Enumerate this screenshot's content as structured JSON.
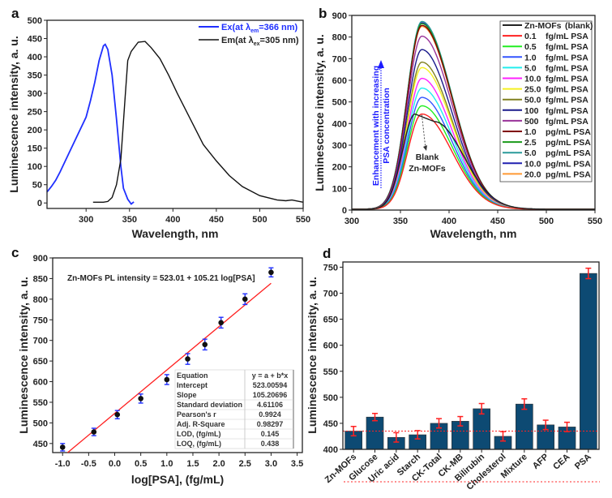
{
  "chart_data": [
    {
      "panel": "a",
      "type": "line",
      "xlabel": "Wavelength, nm",
      "ylabel": "Luminescence intensity, a. u.",
      "xlim": [
        255,
        550
      ],
      "ylim": [
        -15,
        500
      ],
      "xticks": [
        300,
        350,
        400,
        450,
        500,
        550
      ],
      "yticks": [
        0,
        50,
        100,
        150,
        200,
        250,
        300,
        350,
        400,
        450,
        500
      ],
      "grid": false,
      "legend_position": "top-right",
      "series": [
        {
          "name": "Ex(at λem=366 nm)",
          "legend_main": "Ex(at λ",
          "legend_sub": "em",
          "legend_tail": "=366 nm)",
          "color": "#1f2fff",
          "x": [
            255,
            260,
            265,
            270,
            280,
            290,
            300,
            305,
            310,
            315,
            320,
            322,
            325,
            330,
            335,
            340,
            343,
            348,
            352,
            355
          ],
          "y": [
            30,
            45,
            62,
            85,
            135,
            185,
            235,
            280,
            330,
            390,
            430,
            434,
            420,
            350,
            230,
            100,
            40,
            10,
            -3,
            3
          ]
        },
        {
          "name": "Em(at λex=305 nm)",
          "legend_main": "Em(at λ",
          "legend_sub": "ex",
          "legend_tail": "=305 nm)",
          "color": "#111111",
          "x": [
            308,
            320,
            325,
            330,
            335,
            340,
            345,
            348,
            352,
            360,
            368,
            375,
            385,
            395,
            405,
            420,
            435,
            450,
            465,
            480,
            500,
            520,
            530,
            537,
            550
          ],
          "y": [
            2,
            2,
            4,
            15,
            50,
            120,
            290,
            390,
            415,
            440,
            442,
            425,
            395,
            350,
            300,
            230,
            160,
            115,
            75,
            45,
            20,
            8,
            6,
            8,
            2
          ]
        }
      ]
    },
    {
      "panel": "b",
      "type": "line",
      "xlabel": "Wavelength, nm",
      "ylabel": "Luminescence intensity, a. u.",
      "xlim": [
        300,
        550
      ],
      "ylim": [
        0,
        900
      ],
      "xticks": [
        300,
        350,
        400,
        450,
        500,
        550
      ],
      "yticks": [
        0,
        100,
        200,
        300,
        400,
        500,
        600,
        700,
        800,
        900
      ],
      "grid": false,
      "legend_position": "top-right",
      "peak_wavelength": 372,
      "series": [
        {
          "conc": "Zn-MOFs",
          "unit": "(blank)",
          "color": "#222222",
          "peak": 440
        },
        {
          "conc": "0.1",
          "unit": "fg/mL PSA",
          "color": "#ff2020",
          "peak": 440
        },
        {
          "conc": "0.5",
          "unit": "fg/mL PSA",
          "color": "#22ee22",
          "peak": 478
        },
        {
          "conc": "1.0",
          "unit": "fg/mL PSA",
          "color": "#3355ff",
          "peak": 517
        },
        {
          "conc": "5.0",
          "unit": "fg/mL PSA",
          "color": "#22eeee",
          "peak": 560
        },
        {
          "conc": "10.0",
          "unit": "fg/mL PSA",
          "color": "#ff22ff",
          "peak": 605
        },
        {
          "conc": "25.0",
          "unit": "fg/mL PSA",
          "color": "#f5f020",
          "peak": 655
        },
        {
          "conc": "50.0",
          "unit": "fg/mL PSA",
          "color": "#808020",
          "peak": 680
        },
        {
          "conc": "100",
          "unit": "fg/mL PSA",
          "color": "#1a1a8c",
          "peak": 738
        },
        {
          "conc": "500",
          "unit": "fg/mL PSA",
          "color": "#993399",
          "peak": 800
        },
        {
          "conc": "1.0",
          "unit": "pg/mL PSA",
          "color": "#800000",
          "peak": 850
        },
        {
          "conc": "2.5",
          "unit": "pg/mL PSA",
          "color": "#1a9a1a",
          "peak": 858
        },
        {
          "conc": "5.0",
          "unit": "pg/mL PSA",
          "color": "#2a9a9a",
          "peak": 868
        },
        {
          "conc": "10.0",
          "unit": "pg/mL PSA",
          "color": "#2020b0",
          "peak": 862
        },
        {
          "conc": "20.0",
          "unit": "pg/mL PSA",
          "color": "#ff9933",
          "peak": 845
        }
      ],
      "annotations": {
        "arrow_text_1": "Enhancement with increasing",
        "arrow_text_2": "PSA concentration",
        "blank_1": "Blank",
        "blank_2": "Zn-MOFs",
        "arrow_color": "#1a1aff"
      }
    },
    {
      "panel": "c",
      "type": "scatter",
      "xlabel": "log[PSA], (fg/mL)",
      "ylabel": "Luminescence intensity, a. u.",
      "xlim": [
        -1.19,
        3.6
      ],
      "ylim": [
        428,
        900
      ],
      "xticks": [
        "-1.0",
        "-0.5",
        "0.0",
        "0.5",
        "1.0",
        "1.5",
        "2.0",
        "2.5",
        "3.0",
        "3.5"
      ],
      "yticks": [
        450,
        500,
        550,
        600,
        650,
        700,
        750,
        800,
        850,
        900
      ],
      "grid": false,
      "equation_text": "Zn-MOFs   PL intensity = 523.01 + 105.21 log[PSA]",
      "x": [
        -1.0,
        -0.4,
        0.05,
        0.5,
        1.0,
        1.4,
        1.73,
        2.04,
        2.5,
        3.0
      ],
      "y": [
        441,
        478,
        520,
        559,
        605,
        655,
        690,
        743,
        800,
        865
      ],
      "error": [
        9,
        9,
        10,
        11,
        12,
        13,
        13,
        13,
        13,
        11
      ],
      "fit": {
        "intercept": 523.00594,
        "slope": 105.20696,
        "color": "#ff2020"
      },
      "point_color": "#111111",
      "error_color": "#1f2fff",
      "table": [
        [
          "Equation",
          "y = a + b*x"
        ],
        [
          "Intercept",
          "523.00594"
        ],
        [
          "Slope",
          "105.20696"
        ],
        [
          "Standard deviation",
          "4.61106"
        ],
        [
          "Pearson's r",
          "0.9924"
        ],
        [
          "Adj. R-Square",
          "0.98297"
        ],
        [
          "LOD, (fg/mL)",
          "0.145"
        ],
        [
          "LOQ, (fg/mL)",
          "0.438"
        ]
      ]
    },
    {
      "panel": "d",
      "type": "bar",
      "xlabel": "",
      "ylabel": "Luminescence intensity, a. u.",
      "ylim": [
        400,
        760
      ],
      "yticks": [
        400,
        450,
        500,
        550,
        600,
        650,
        700,
        750
      ],
      "grid": false,
      "categories": [
        "Zn-MOFs",
        "Glucose",
        "Uric acid",
        "Starch",
        "CK-Total",
        "CK-MB",
        "Bilirubin",
        "Cholesterol",
        "Mixture",
        "AFP",
        "CEA",
        "PSA"
      ],
      "values": [
        435,
        462,
        423,
        428,
        450,
        454,
        478,
        425,
        487,
        447,
        443,
        738
      ],
      "error": [
        9,
        7,
        9,
        8,
        9,
        9,
        10,
        9,
        10,
        9,
        9,
        10
      ],
      "bar_color": "#0d4a73",
      "error_color": "#ff2020",
      "reference_line": 435
    }
  ],
  "panel_labels": [
    "a",
    "b",
    "c",
    "d"
  ]
}
